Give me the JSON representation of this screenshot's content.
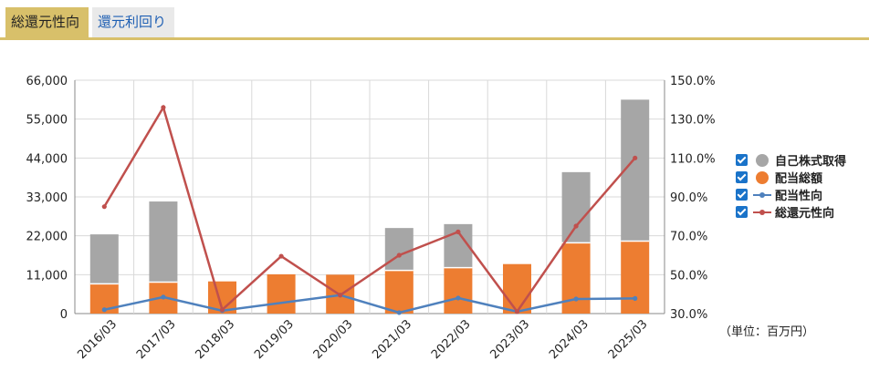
{
  "tabs": {
    "active": "総還元性向",
    "inactive": "還元利回り"
  },
  "unit_label": "（単位：百万円）",
  "colors": {
    "buyback": "#a6a6a6",
    "dividend": "#ed7d31",
    "payout": "#4f81bd",
    "total_payout": "#c0504d",
    "tab_accent": "#d8c06a"
  },
  "legend": [
    {
      "label": "自己株式取得",
      "marker": "dot",
      "color": "#a6a6a6"
    },
    {
      "label": "配当総額",
      "marker": "dot",
      "color": "#ed7d31"
    },
    {
      "label": "配当性向",
      "marker": "line",
      "color": "#4f81bd"
    },
    {
      "label": "総還元性向",
      "marker": "line",
      "color": "#c0504d"
    }
  ],
  "chart_data": {
    "type": "bar",
    "stacked": true,
    "categories": [
      "2016/03",
      "2017/03",
      "2018/03",
      "2019/03",
      "2020/03",
      "2021/03",
      "2022/03",
      "2023/03",
      "2024/03",
      "2025/03"
    ],
    "series": [
      {
        "name": "配当総額",
        "type": "bar",
        "axis": "left",
        "values": [
          8400,
          8900,
          9100,
          11100,
          11000,
          12200,
          13000,
          14000,
          20000,
          20500
        ]
      },
      {
        "name": "自己株式取得",
        "type": "bar",
        "axis": "left",
        "values": [
          14000,
          22800,
          0,
          0,
          0,
          12000,
          12300,
          0,
          20000,
          40000
        ]
      },
      {
        "name": "配当性向",
        "type": "line",
        "axis": "right",
        "values": [
          32.0,
          38.5,
          31.5,
          null,
          39.5,
          30.5,
          38.0,
          31.0,
          37.5,
          37.8
        ]
      },
      {
        "name": "総還元性向",
        "type": "line",
        "axis": "right",
        "values": [
          85.0,
          136.0,
          32.0,
          59.5,
          39.5,
          60.0,
          72.0,
          31.0,
          75.0,
          110.0
        ]
      }
    ],
    "y_left": {
      "min": 0,
      "max": 66000,
      "ticks": [
        "0",
        "11,000",
        "22,000",
        "33,000",
        "44,000",
        "55,000",
        "66,000"
      ]
    },
    "y_right": {
      "min": 30,
      "max": 150,
      "ticks": [
        "30.0%",
        "50.0%",
        "70.0%",
        "90.0%",
        "110.0%",
        "130.0%",
        "150.0%"
      ]
    },
    "grid": true,
    "legend_position": "right"
  }
}
